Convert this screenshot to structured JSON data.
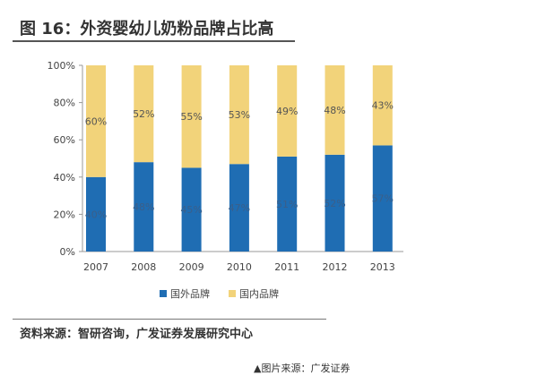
{
  "chart_data": {
    "type": "bar",
    "stacked": true,
    "title": "图 16：外资婴幼儿奶粉品牌占比高",
    "categories": [
      "2007",
      "2008",
      "2009",
      "2010",
      "2011",
      "2012",
      "2013"
    ],
    "series": [
      {
        "name": "国外品牌",
        "values": [
          40,
          48,
          45,
          47,
          51,
          52,
          57
        ],
        "labels": [
          "40%",
          "48%",
          "45%",
          "47%",
          "51%",
          "52%",
          "57%"
        ],
        "color": "#1f6db3"
      },
      {
        "name": "国内品牌",
        "values": [
          60,
          52,
          55,
          53,
          49,
          48,
          43
        ],
        "labels": [
          "60%",
          "52%",
          "55%",
          "53%",
          "49%",
          "48%",
          "43%"
        ],
        "color": "#f2d37a"
      }
    ],
    "ylim": [
      0,
      100
    ],
    "yticks": [
      "0%",
      "20%",
      "40%",
      "60%",
      "80%",
      "100%"
    ],
    "grid": false,
    "legend": "bottom"
  },
  "source": "资料来源：智研咨询，广发证券发展研究中心",
  "caption": "▲图片来源：广发证券"
}
